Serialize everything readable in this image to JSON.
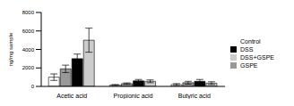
{
  "chart_data": {
    "type": "bar",
    "y_label": "ng/mg sample",
    "categories": [
      "Acetic acid",
      "Propionic acid",
      "Butyric acid"
    ],
    "series": [
      {
        "name": "Control",
        "color": "#ffffff",
        "values": [
          1000,
          150,
          200
        ],
        "errors": [
          350,
          50,
          100
        ]
      },
      {
        "name": "GSPE",
        "color": "#999999",
        "values": [
          1900,
          300,
          400
        ],
        "errors": [
          400,
          80,
          150
        ]
      },
      {
        "name": "DSS",
        "color": "#000000",
        "values": [
          3000,
          600,
          550
        ],
        "errors": [
          500,
          150,
          200
        ]
      },
      {
        "name": "DSS+GSPE",
        "color": "#cccccc",
        "values": [
          5000,
          550,
          350
        ],
        "errors": [
          1300,
          150,
          150
        ]
      }
    ],
    "ylim": [
      0,
      8000
    ],
    "yticks": [
      0,
      2000,
      4000,
      6000,
      8000
    ],
    "grid": false,
    "legend": "right"
  }
}
